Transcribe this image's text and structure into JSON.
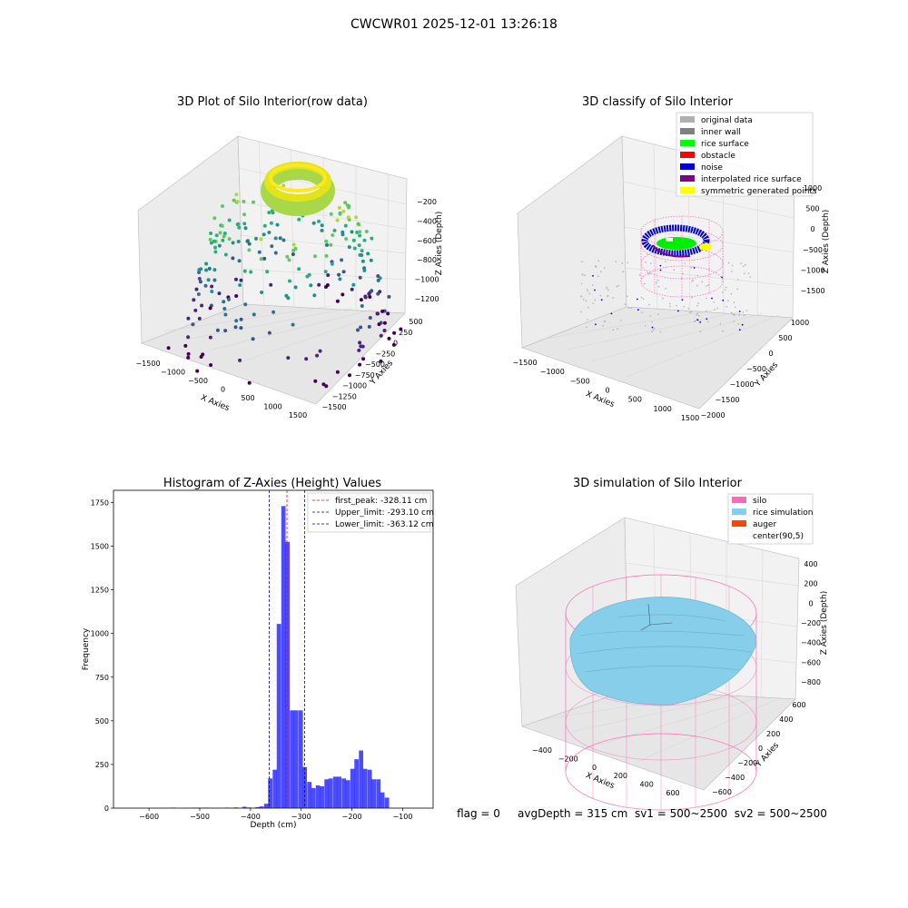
{
  "figure": {
    "suptitle": "CWCWR01 2025-12-01 13:26:18",
    "status_line": "flag = 0     avgDepth = 315 cm  sv1 = 500~2500  sv2 = 500~2500"
  },
  "colors": {
    "hist_bar": "#0000ff",
    "first_peak_line": "#ff0000",
    "limit_line": "#0000aa",
    "silo": "#ff69b4",
    "rice_simulation": "#87ceeb",
    "auger": "#ff4500",
    "inner_wall": "#808080",
    "rice_surface": "#00ff00",
    "obstacle": "#ff0000",
    "noise": "#0000cd",
    "interpolated_rice_surface": "#800080",
    "symmetric_generated_points": "#ffff00",
    "original_data": "#b0b0b0"
  },
  "chart_data": [
    {
      "type": "scatter",
      "title": "3D Plot of Silo Interior(row data)",
      "xlabel": "X Axies",
      "ylabel": "Y Axies",
      "zlabel": "Z Axies (Depth)",
      "x_ticks": [
        "−1500",
        "−1000",
        "−500",
        "0",
        "500",
        "1000",
        "1500"
      ],
      "y_ticks": [
        "500",
        "250",
        "0",
        "−250",
        "−500",
        "−750",
        "−1000",
        "−1250",
        "−1500"
      ],
      "z_ticks": [
        "−200",
        "−400",
        "−600",
        "−800",
        "−1000",
        "−1200"
      ],
      "colormap": "viridis",
      "grid": true
    },
    {
      "type": "scatter",
      "title": "3D classify of Silo Interior",
      "xlabel": "X Axies",
      "ylabel": "Y Axies",
      "zlabel": "Z Axies (Depth)",
      "x_ticks": [
        "−1500",
        "−1000",
        "−500",
        "0",
        "500",
        "1000",
        "1500"
      ],
      "y_ticks": [
        "1000",
        "500",
        "0",
        "−500",
        "−1000",
        "−1500",
        "−2000"
      ],
      "z_ticks": [
        "1000",
        "500",
        "0",
        "−500",
        "−1000",
        "−1500"
      ],
      "legend": {
        "placement": "top-right",
        "entries": [
          "original data",
          "inner wall",
          "rice surface",
          "obstacle",
          "noise",
          "interpolated rice surface",
          "symmetric generated points"
        ]
      },
      "grid": true
    },
    {
      "type": "bar",
      "title": "Histogram of Z-Axies (Height) Values",
      "xlabel": "Depth (cm)",
      "ylabel": "Frequency",
      "xlim": [
        -670,
        -40
      ],
      "ylim": [
        0,
        1820
      ],
      "x_ticks": [
        -600,
        -500,
        -400,
        -300,
        -200,
        -100
      ],
      "x_tick_labels": [
        "−600",
        "−500",
        "−400",
        "−300",
        "−200",
        "−100"
      ],
      "y_ticks": [
        0,
        250,
        500,
        750,
        1000,
        1250,
        1500,
        1750
      ],
      "bin_width": 8.5,
      "bins": [
        {
          "x": -560,
          "y": 2
        },
        {
          "x": -551,
          "y": 3
        },
        {
          "x": -514,
          "y": 2
        },
        {
          "x": -505,
          "y": 3
        },
        {
          "x": -497,
          "y": 2
        },
        {
          "x": -488,
          "y": 3
        },
        {
          "x": -463,
          "y": 2
        },
        {
          "x": -446,
          "y": 3
        },
        {
          "x": -429,
          "y": 4
        },
        {
          "x": -412,
          "y": 8
        },
        {
          "x": -403,
          "y": 4
        },
        {
          "x": -386,
          "y": 6
        },
        {
          "x": -378,
          "y": 10
        },
        {
          "x": -369,
          "y": 25
        },
        {
          "x": -361,
          "y": 170
        },
        {
          "x": -352,
          "y": 220
        },
        {
          "x": -344,
          "y": 1055
        },
        {
          "x": -335,
          "y": 1730
        },
        {
          "x": -327,
          "y": 1525
        },
        {
          "x": -318,
          "y": 560
        },
        {
          "x": -310,
          "y": 560
        },
        {
          "x": -301,
          "y": 560
        },
        {
          "x": -293,
          "y": 235
        },
        {
          "x": -284,
          "y": 150
        },
        {
          "x": -276,
          "y": 115
        },
        {
          "x": -267,
          "y": 130
        },
        {
          "x": -259,
          "y": 125
        },
        {
          "x": -250,
          "y": 165
        },
        {
          "x": -242,
          "y": 170
        },
        {
          "x": -233,
          "y": 180
        },
        {
          "x": -225,
          "y": 180
        },
        {
          "x": -216,
          "y": 170
        },
        {
          "x": -208,
          "y": 160
        },
        {
          "x": -199,
          "y": 225
        },
        {
          "x": -191,
          "y": 280
        },
        {
          "x": -182,
          "y": 330
        },
        {
          "x": -174,
          "y": 225
        },
        {
          "x": -165,
          "y": 220
        },
        {
          "x": -157,
          "y": 165
        },
        {
          "x": -148,
          "y": 165
        },
        {
          "x": -140,
          "y": 90
        },
        {
          "x": -131,
          "y": 60
        }
      ],
      "vlines": [
        {
          "label": "first_peak: -328.11 cm",
          "x": -328.11
        },
        {
          "label": "Upper_limit: -293.10 cm",
          "x": -293.1
        },
        {
          "label": "Lower_limit: -363.12 cm",
          "x": -363.12
        }
      ],
      "legend": {
        "placement": "top-right"
      },
      "grid": false
    },
    {
      "type": "scatter",
      "title": "3D simulation of Silo Interior",
      "xlabel": "X Axies",
      "ylabel": "Y Axies",
      "zlabel": "Z Axies (Depth)",
      "x_ticks": [
        "−400",
        "−200",
        "0",
        "200",
        "400",
        "600"
      ],
      "y_ticks": [
        "600",
        "400",
        "200",
        "0",
        "−200",
        "−400",
        "−600"
      ],
      "z_ticks": [
        "400",
        "200",
        "0",
        "−200",
        "−400",
        "−600",
        "−800"
      ],
      "legend": {
        "placement": "top-right",
        "entries": [
          "silo",
          "rice simulation",
          "auger",
          "center(90,5)"
        ]
      },
      "grid": true
    }
  ]
}
